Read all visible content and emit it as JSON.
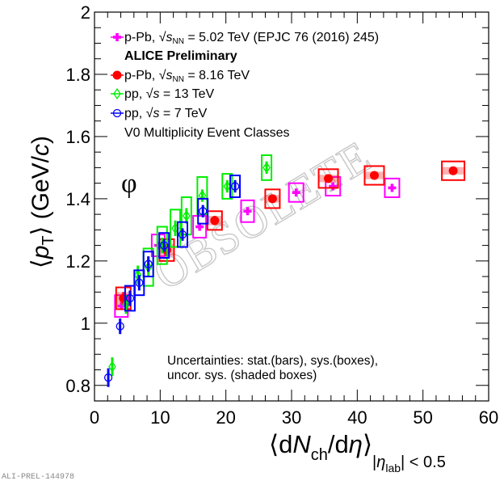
{
  "chart_data": {
    "type": "scatter",
    "title": "",
    "particle": "φ",
    "xlabel": "⟨dN_ch/dη⟩_|η_lab| < 0.5",
    "ylabel": "⟨p_T⟩ (GeV/c)",
    "xlim": [
      0,
      60
    ],
    "ylim": [
      0.75,
      2.0
    ],
    "xticks": [
      0,
      10,
      20,
      30,
      40,
      50,
      60
    ],
    "xtick_labels": [
      "0",
      "10",
      "20",
      "30",
      "40",
      "50",
      "60"
    ],
    "yticks": [
      0.8,
      1.0,
      1.2,
      1.4,
      1.6,
      1.8,
      2.0
    ],
    "ytick_labels": [
      "0.8",
      "1",
      "1.2",
      "1.4",
      "1.6",
      "1.8",
      "2"
    ],
    "grid": false,
    "legend_position": "top-left",
    "series": [
      {
        "name": "p-Pb, √s_NN = 5.02 TeV (EPJC 76 (2016) 245)",
        "color": "#ff00ff",
        "marker": "cross",
        "x": [
          4.1,
          9.7,
          16.0,
          23.3,
          30.7,
          36.3,
          45.3
        ],
        "y": [
          1.055,
          1.25,
          1.31,
          1.36,
          1.42,
          1.44,
          1.435
        ],
        "stat": [
          0.012,
          0.012,
          0.012,
          0.012,
          0.01,
          0.01,
          0.01
        ],
        "sys": [
          0.035,
          0.035,
          0.035,
          0.035,
          0.03,
          0.03,
          0.03
        ]
      },
      {
        "name": "p-Pb, √s_NN = 8.16 TeV",
        "color": "#ff0000",
        "marker": "circle-filled",
        "x": [
          4.4,
          11.0,
          18.3,
          27.1,
          35.6,
          42.6,
          54.6
        ],
        "y": [
          1.08,
          1.235,
          1.33,
          1.4,
          1.465,
          1.475,
          1.49
        ],
        "stat": [
          0.02,
          0.02,
          0.015,
          0.01,
          0.01,
          0.01,
          0.01
        ],
        "sys": [
          0.035,
          0.035,
          0.03,
          0.03,
          0.03,
          0.03,
          0.03
        ],
        "uncor": [
          0.02,
          0.02,
          0.015,
          0.012,
          0.012,
          0.012,
          0.012
        ]
      },
      {
        "name": "pp, √s = 13 TeV",
        "color": "#00ee00",
        "marker": "diamond-open",
        "x": [
          2.7,
          4.8,
          6.6,
          8.2,
          10.3,
          12.3,
          14.0,
          16.4,
          20.2,
          26.2
        ],
        "y": [
          0.86,
          1.06,
          1.155,
          1.18,
          1.25,
          1.305,
          1.345,
          1.41,
          1.44,
          1.5
        ],
        "stat": [
          0.03,
          0.03,
          0.03,
          0.03,
          0.025,
          0.025,
          0.025,
          0.02,
          0.02,
          0.02
        ],
        "sys": [
          0.0,
          0.0,
          0.0,
          0.06,
          0.06,
          0.06,
          0.06,
          0.06,
          0.04,
          0.04
        ]
      },
      {
        "name": "pp, √s = 7 TeV",
        "color": "#0000ff",
        "marker": "circle-open",
        "x": [
          2.1,
          3.9,
          5.4,
          6.8,
          8.2,
          10.6,
          13.4,
          16.5,
          21.4
        ],
        "y": [
          0.825,
          0.99,
          1.08,
          1.13,
          1.19,
          1.25,
          1.285,
          1.36,
          1.44
        ],
        "stat": [
          0.03,
          0.025,
          0.025,
          0.025,
          0.025,
          0.02,
          0.02,
          0.02,
          0.02
        ],
        "sys": [
          0.0,
          0.0,
          0.04,
          0.04,
          0.04,
          0.04,
          0.04,
          0.04,
          0.035
        ]
      }
    ],
    "annotations": [
      "ALICE Preliminary",
      "V0 Multiplicity Event Classes",
      "Uncertainties: stat.(bars), sys.(boxes),",
      "uncor. sys. (shaded boxes)"
    ],
    "watermark": "OBSOLETE"
  },
  "legend": {
    "items": [
      {
        "prefix": "p-Pb, ",
        "sym": "s",
        "sub": "NN",
        "suffix": " = 5.02 TeV (EPJC 76 (2016) 245)"
      },
      {
        "prefix": "p-Pb, ",
        "sym": "s",
        "sub": "NN",
        "suffix": " = 8.16 TeV"
      },
      {
        "prefix": "pp, ",
        "sym": "s",
        "sub": "",
        "suffix": " = 13 TeV"
      },
      {
        "prefix": "pp, ",
        "sym": "s",
        "sub": "",
        "suffix": " = 7 TeV"
      }
    ],
    "header": "ALICE Preliminary",
    "footer": "V0 Multiplicity Event Classes"
  },
  "labels": {
    "particle": "φ",
    "uncert_line1": "Uncertainties: stat.(bars), sys.(boxes),",
    "uncert_line2": "uncor. sys. (shaded boxes)",
    "ytitle_open": "⟨",
    "ytitle_p": "p",
    "ytitle_T": "T",
    "ytitle_close": "⟩ (GeV/",
    "ytitle_c": "c",
    "ytitle_end": ")",
    "xtitle_open": "⟨d",
    "xtitle_N": "N",
    "xtitle_ch": "ch",
    "xtitle_mid": "/d",
    "xtitle_eta": "η",
    "xtitle_close": "⟩",
    "xtitle_cut_pre": "|",
    "xtitle_cut_eta": "η",
    "xtitle_cut_lab": "lab",
    "xtitle_cut_post": "| < 0.5",
    "watermark": "OBSOLETE",
    "prelim_id": "ALI-PREL-144978"
  }
}
